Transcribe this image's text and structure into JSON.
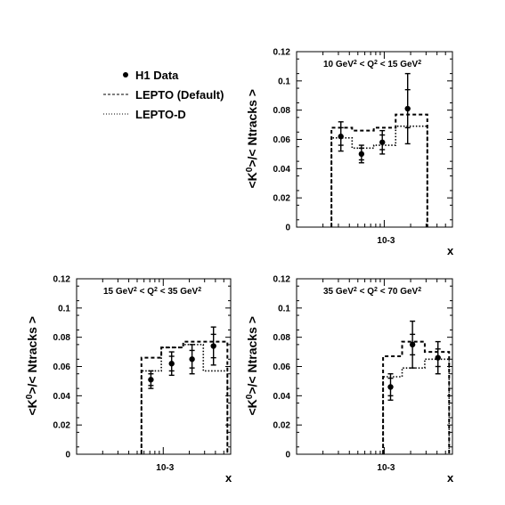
{
  "legend": {
    "entries": [
      {
        "label": "H1 Data",
        "style": "marker"
      },
      {
        "label": "LEPTO (Default)",
        "style": "dashed"
      },
      {
        "label": "LEPTO-D",
        "style": "dotted"
      }
    ]
  },
  "common": {
    "ylabel": "<K0>/< Ntracks >",
    "xlabel": "x",
    "x_tick_label": "10-3",
    "y_ticks": [
      "0",
      "0.02",
      "0.04",
      "0.06",
      "0.08",
      "0.1",
      "0.12"
    ]
  },
  "chart_data": [
    {
      "type": "line",
      "title": "10 GeV2 < Q2 < 15 GeV2",
      "xlabel": "x",
      "ylabel": "<K0>/< Ntracks >",
      "x_scale": "log",
      "ylim": [
        0,
        0.12
      ],
      "series": [
        {
          "name": "H1 Data",
          "kind": "points",
          "x": [
            0.00032,
            0.00055,
            0.00095,
            0.00185
          ],
          "y": [
            0.062,
            0.05,
            0.058,
            0.081
          ],
          "err_stat": [
            0.006,
            0.004,
            0.005,
            0.013
          ],
          "err_tot": [
            0.01,
            0.006,
            0.008,
            0.024
          ]
        },
        {
          "name": "LEPTO (Default)",
          "kind": "step",
          "edges": [
            0.00025,
            0.00043,
            0.00076,
            0.00135,
            0.0031
          ],
          "values": [
            0.068,
            0.066,
            0.068,
            0.077
          ]
        },
        {
          "name": "LEPTO-D",
          "kind": "step",
          "edges": [
            0.00025,
            0.00043,
            0.00076,
            0.00135,
            0.0031
          ],
          "values": [
            0.061,
            0.054,
            0.056,
            0.069
          ]
        }
      ]
    },
    {
      "type": "line",
      "title": "15 GeV2 < Q2 < 35 GeV2",
      "xlabel": "x",
      "ylabel": "<K0>/< Ntracks >",
      "x_scale": "log",
      "ylim": [
        0,
        0.12
      ],
      "series": [
        {
          "name": "H1 Data",
          "kind": "points",
          "x": [
            0.00072,
            0.00125,
            0.00215,
            0.0038
          ],
          "y": [
            0.051,
            0.062,
            0.065,
            0.074
          ],
          "err_stat": [
            0.004,
            0.005,
            0.006,
            0.008
          ],
          "err_tot": [
            0.006,
            0.008,
            0.01,
            0.013
          ]
        },
        {
          "name": "LEPTO (Default)",
          "kind": "step",
          "edges": [
            0.00056,
            0.00095,
            0.0017,
            0.0029,
            0.0055
          ],
          "values": [
            0.066,
            0.073,
            0.077,
            0.077
          ]
        },
        {
          "name": "LEPTO-D",
          "kind": "step",
          "edges": [
            0.00056,
            0.00095,
            0.0017,
            0.0029,
            0.0055
          ],
          "values": [
            0.057,
            0.073,
            0.075,
            0.057
          ]
        }
      ]
    },
    {
      "type": "line",
      "title": "35 GeV2 < Q2 < 70 GeV2",
      "xlabel": "x",
      "ylabel": "<K0>/< Ntracks >",
      "x_scale": "log",
      "ylim": [
        0,
        0.12
      ],
      "series": [
        {
          "name": "H1 Data",
          "kind": "points",
          "x": [
            0.00118,
            0.0021,
            0.0041
          ],
          "y": [
            0.046,
            0.075,
            0.066
          ],
          "err_stat": [
            0.006,
            0.007,
            0.006
          ],
          "err_tot": [
            0.009,
            0.016,
            0.011
          ]
        },
        {
          "name": "LEPTO (Default)",
          "kind": "step",
          "edges": [
            0.00097,
            0.0016,
            0.0029,
            0.0055
          ],
          "values": [
            0.067,
            0.077,
            0.07
          ]
        },
        {
          "name": "LEPTO-D",
          "kind": "step",
          "edges": [
            0.00097,
            0.0016,
            0.0029,
            0.0055
          ],
          "values": [
            0.053,
            0.059,
            0.065
          ]
        }
      ]
    }
  ]
}
